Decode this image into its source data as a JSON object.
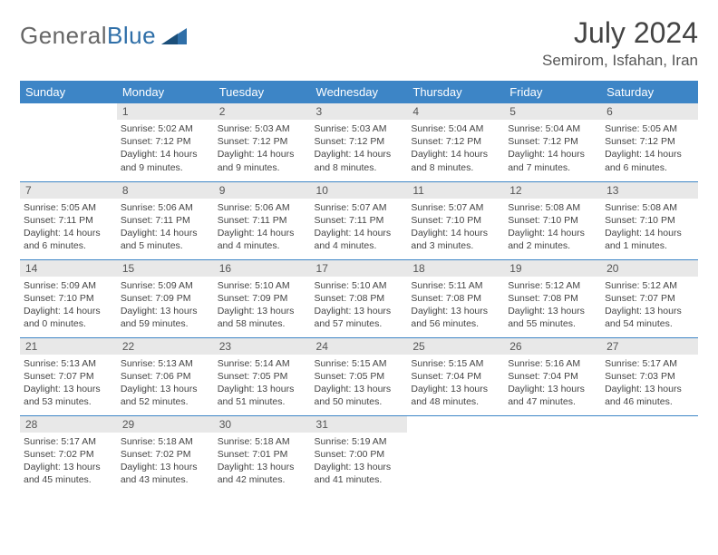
{
  "brand": {
    "part1": "General",
    "part2": "Blue"
  },
  "title": "July 2024",
  "location": "Semirom, Isfahan, Iran",
  "colors": {
    "header_bg": "#3d85c6",
    "row_border": "#3d85c6",
    "daynum_bg": "#e8e8e8"
  },
  "weekdays": [
    "Sunday",
    "Monday",
    "Tuesday",
    "Wednesday",
    "Thursday",
    "Friday",
    "Saturday"
  ],
  "weeks": [
    [
      null,
      {
        "n": "1",
        "sr": "5:02 AM",
        "ss": "7:12 PM",
        "dh": "14",
        "dm": "9"
      },
      {
        "n": "2",
        "sr": "5:03 AM",
        "ss": "7:12 PM",
        "dh": "14",
        "dm": "9"
      },
      {
        "n": "3",
        "sr": "5:03 AM",
        "ss": "7:12 PM",
        "dh": "14",
        "dm": "8"
      },
      {
        "n": "4",
        "sr": "5:04 AM",
        "ss": "7:12 PM",
        "dh": "14",
        "dm": "8"
      },
      {
        "n": "5",
        "sr": "5:04 AM",
        "ss": "7:12 PM",
        "dh": "14",
        "dm": "7"
      },
      {
        "n": "6",
        "sr": "5:05 AM",
        "ss": "7:12 PM",
        "dh": "14",
        "dm": "6"
      }
    ],
    [
      {
        "n": "7",
        "sr": "5:05 AM",
        "ss": "7:11 PM",
        "dh": "14",
        "dm": "6"
      },
      {
        "n": "8",
        "sr": "5:06 AM",
        "ss": "7:11 PM",
        "dh": "14",
        "dm": "5"
      },
      {
        "n": "9",
        "sr": "5:06 AM",
        "ss": "7:11 PM",
        "dh": "14",
        "dm": "4"
      },
      {
        "n": "10",
        "sr": "5:07 AM",
        "ss": "7:11 PM",
        "dh": "14",
        "dm": "4"
      },
      {
        "n": "11",
        "sr": "5:07 AM",
        "ss": "7:10 PM",
        "dh": "14",
        "dm": "3"
      },
      {
        "n": "12",
        "sr": "5:08 AM",
        "ss": "7:10 PM",
        "dh": "14",
        "dm": "2"
      },
      {
        "n": "13",
        "sr": "5:08 AM",
        "ss": "7:10 PM",
        "dh": "14",
        "dm": "1"
      }
    ],
    [
      {
        "n": "14",
        "sr": "5:09 AM",
        "ss": "7:10 PM",
        "dh": "14",
        "dm": "0"
      },
      {
        "n": "15",
        "sr": "5:09 AM",
        "ss": "7:09 PM",
        "dh": "13",
        "dm": "59"
      },
      {
        "n": "16",
        "sr": "5:10 AM",
        "ss": "7:09 PM",
        "dh": "13",
        "dm": "58"
      },
      {
        "n": "17",
        "sr": "5:10 AM",
        "ss": "7:08 PM",
        "dh": "13",
        "dm": "57"
      },
      {
        "n": "18",
        "sr": "5:11 AM",
        "ss": "7:08 PM",
        "dh": "13",
        "dm": "56"
      },
      {
        "n": "19",
        "sr": "5:12 AM",
        "ss": "7:08 PM",
        "dh": "13",
        "dm": "55"
      },
      {
        "n": "20",
        "sr": "5:12 AM",
        "ss": "7:07 PM",
        "dh": "13",
        "dm": "54"
      }
    ],
    [
      {
        "n": "21",
        "sr": "5:13 AM",
        "ss": "7:07 PM",
        "dh": "13",
        "dm": "53"
      },
      {
        "n": "22",
        "sr": "5:13 AM",
        "ss": "7:06 PM",
        "dh": "13",
        "dm": "52"
      },
      {
        "n": "23",
        "sr": "5:14 AM",
        "ss": "7:05 PM",
        "dh": "13",
        "dm": "51"
      },
      {
        "n": "24",
        "sr": "5:15 AM",
        "ss": "7:05 PM",
        "dh": "13",
        "dm": "50"
      },
      {
        "n": "25",
        "sr": "5:15 AM",
        "ss": "7:04 PM",
        "dh": "13",
        "dm": "48"
      },
      {
        "n": "26",
        "sr": "5:16 AM",
        "ss": "7:04 PM",
        "dh": "13",
        "dm": "47"
      },
      {
        "n": "27",
        "sr": "5:17 AM",
        "ss": "7:03 PM",
        "dh": "13",
        "dm": "46"
      }
    ],
    [
      {
        "n": "28",
        "sr": "5:17 AM",
        "ss": "7:02 PM",
        "dh": "13",
        "dm": "45"
      },
      {
        "n": "29",
        "sr": "5:18 AM",
        "ss": "7:02 PM",
        "dh": "13",
        "dm": "43"
      },
      {
        "n": "30",
        "sr": "5:18 AM",
        "ss": "7:01 PM",
        "dh": "13",
        "dm": "42"
      },
      {
        "n": "31",
        "sr": "5:19 AM",
        "ss": "7:00 PM",
        "dh": "13",
        "dm": "41"
      },
      null,
      null,
      null
    ]
  ]
}
